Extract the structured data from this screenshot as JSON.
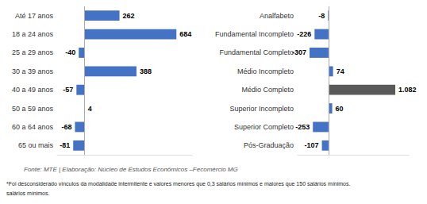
{
  "chart_data": [
    {
      "type": "bar",
      "orientation": "horizontal",
      "categories": [
        "Até 17 anos",
        "18 a 24 anos",
        "25 a 29 anos",
        "30 a 39 anos",
        "40 a 49 anos",
        "50 a 59 anos",
        "60 a 64 anos",
        "65 ou mais"
      ],
      "values": [
        262,
        684,
        -40,
        388,
        -57,
        4,
        -68,
        -81
      ],
      "colors": [
        "#4472C4",
        "#4472C4",
        "#4472C4",
        "#4472C4",
        "#4472C4",
        "#4472C4",
        "#4472C4",
        "#4472C4"
      ],
      "xlim": [
        -200,
        800
      ],
      "data_labels": true,
      "tick_labels": "y",
      "grid": false,
      "annotations": [
        "Fonte: MTE | Elaboração: Núcleo de Estudos Econômicos –Fecomércio MG",
        "*Foi desconsiderado vínculos da modalidade intermitente e valores menores que 0,3 salários mínimos e maiores que 150 salários mínimos.",
        "salários mínimos."
      ]
    },
    {
      "type": "bar",
      "orientation": "horizontal",
      "categories": [
        "Analfabeto",
        "Fundamental Incompleto",
        "Fundamental Completo",
        "Médio Incompleto",
        "Médio Completo",
        "Superior Incompleto",
        "Superior Completo",
        "Pós-Graduação"
      ],
      "values": [
        -8,
        -226,
        -307,
        74,
        1082,
        60,
        -253,
        -107
      ],
      "value_labels": [
        "-8",
        "-226",
        "-307",
        "74",
        "1.082",
        "60",
        "-253",
        "-107"
      ],
      "colors": [
        "#4472C4",
        "#4472C4",
        "#4472C4",
        "#4472C4",
        "#595959",
        "#4472C4",
        "#4472C4",
        "#4472C4"
      ],
      "xlim": [
        -500,
        1300
      ],
      "data_labels": true,
      "tick_labels": "y",
      "grid": false
    }
  ]
}
